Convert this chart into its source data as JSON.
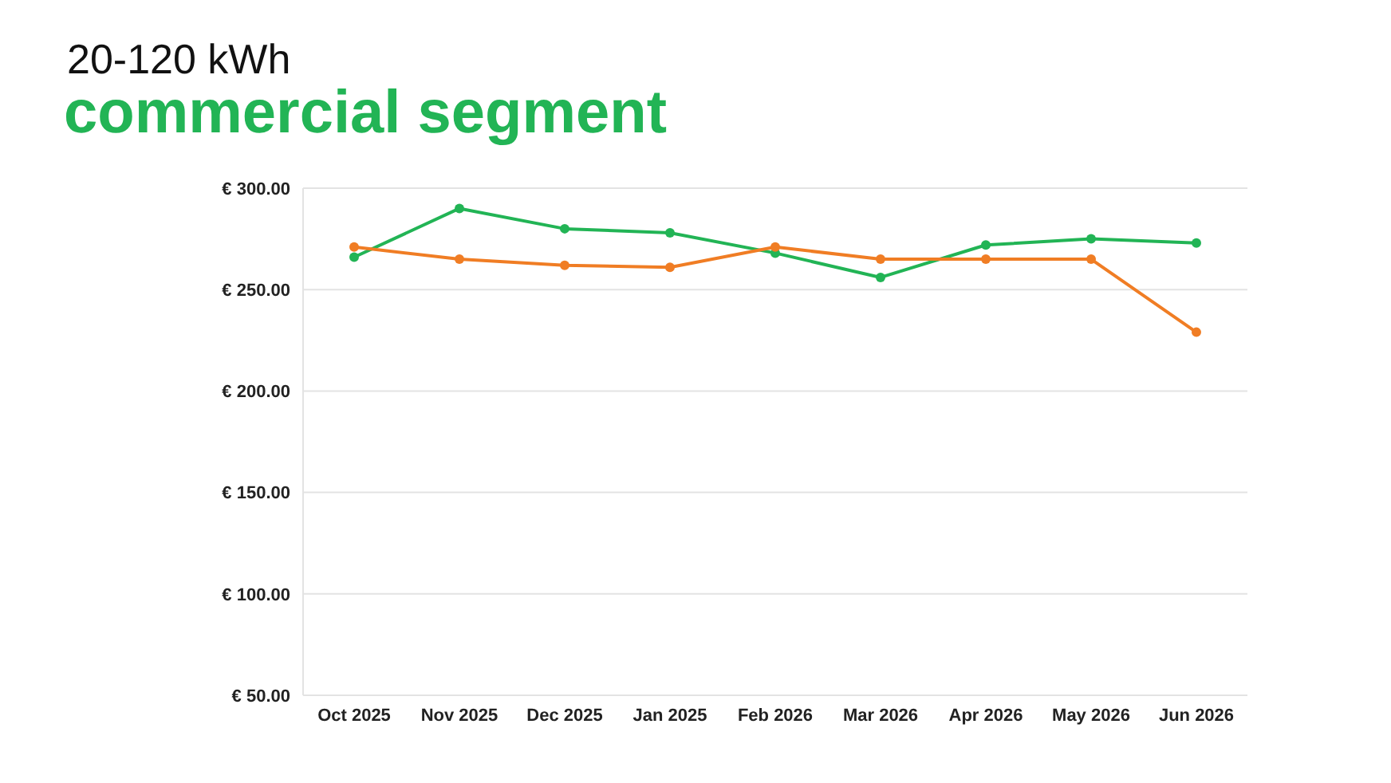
{
  "chart_data": {
    "type": "line",
    "title": "commercial segment",
    "subtitle": "20-120 kWh",
    "categories": [
      "Oct 2025",
      "Nov 2025",
      "Dec 2025",
      "Jan 2025",
      "Feb 2026",
      "Mar 2026",
      "Apr 2026",
      "May 2026",
      "Jun 2026"
    ],
    "series": [
      {
        "color": "#22b455",
        "values": [
          266,
          290,
          280,
          278,
          268,
          256,
          272,
          275,
          273
        ]
      },
      {
        "color": "#f07d24",
        "values": [
          271,
          265,
          262,
          261,
          271,
          265,
          265,
          265,
          229
        ]
      }
    ],
    "ylim": [
      50,
      300
    ],
    "yticks": [
      {
        "value": 50,
        "label": "€ 50.00"
      },
      {
        "value": 100,
        "label": "€ 100.00"
      },
      {
        "value": 150,
        "label": "€ 150.00"
      },
      {
        "value": 200,
        "label": "€ 200.00"
      },
      {
        "value": 250,
        "label": "€ 250.00"
      },
      {
        "value": 300,
        "label": "€ 300.00"
      }
    ],
    "grid": "y",
    "marker": "circle",
    "line_style": "solid"
  }
}
